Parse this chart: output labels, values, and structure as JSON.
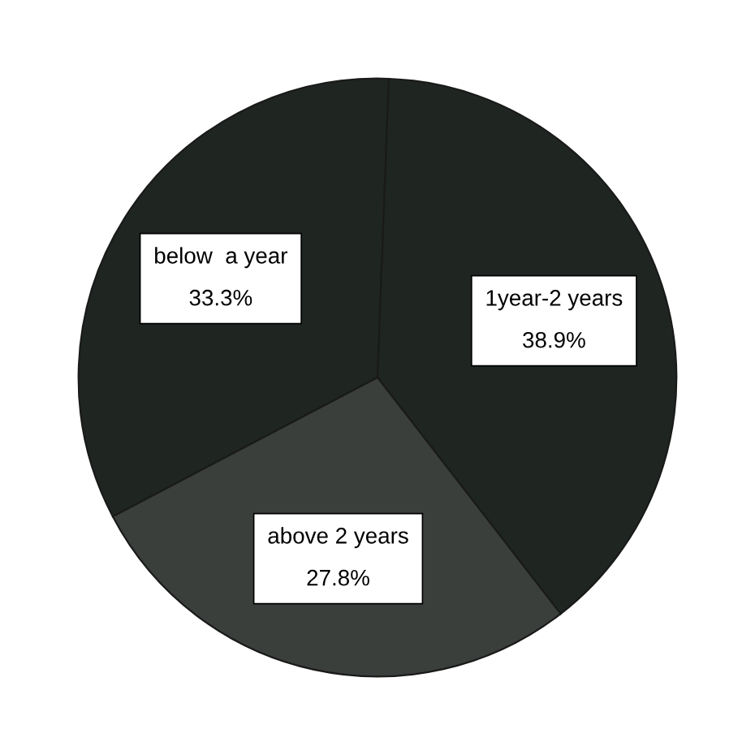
{
  "chart_data": {
    "type": "pie",
    "categories": [
      "below  a year",
      "1year-2 years",
      "above 2 years"
    ],
    "values": [
      33.3,
      38.9,
      27.8
    ],
    "value_labels": [
      "33.3%",
      "38.9%",
      "27.8%"
    ],
    "colors": [
      "#1f2622",
      "#1f2622",
      "#3b3f3c"
    ],
    "legend": false
  }
}
